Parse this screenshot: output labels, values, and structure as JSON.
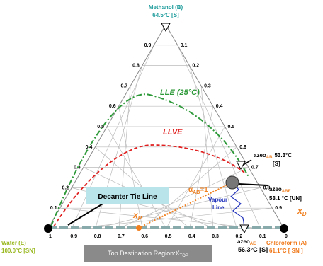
{
  "vertices": {
    "top": {
      "name": "Methanol (B)",
      "temp": "64.5°C [S]"
    },
    "left": {
      "name": "Water (E)",
      "temp": "100.0°C [SN]"
    },
    "right": {
      "name": "Chloroform (A)",
      "temp": "61.1°C [ SN ]"
    }
  },
  "ticks": {
    "left": [
      "0.1",
      "0.2",
      "0.3",
      "0.4",
      "0.5",
      "0.6",
      "0.7",
      "0.8",
      "0.9"
    ],
    "right": [
      "0.1",
      "0.2",
      "0.3",
      "0.4",
      "0.5",
      "0.6",
      "0.7",
      "0.8",
      "0.9"
    ],
    "bottom": [
      "1",
      "0.9",
      "0.8",
      "0.7",
      "0.6",
      "0.5",
      "0.4",
      "0.3",
      "0.2",
      "0.1",
      "0"
    ]
  },
  "curves": {
    "lle": "LLE (25°C)",
    "llve": "LLVE"
  },
  "azeo_ab": {
    "word": "azeo",
    "sub": "AB",
    "temp": "53.3°C",
    "kind": "[S]"
  },
  "azeo_abe": {
    "word": "azeo",
    "sub": "ABE",
    "temp": "53.1 °C [UN]"
  },
  "azeo_ae": {
    "word": "azeo",
    "sub": "AE",
    "temp": "56.3°C [S]"
  },
  "decanter": "Decanter Tie Line",
  "alpha": {
    "sym": "α",
    "sub": "AB",
    "rest": "=1"
  },
  "xp": {
    "sym": "x",
    "sub": "P"
  },
  "xd": {
    "sym": "x",
    "sub": "D"
  },
  "vapour": [
    "Vapour",
    "Line"
  ],
  "top_region": {
    "text": "Top Destination Region:X",
    "sub": "TOP"
  }
}
